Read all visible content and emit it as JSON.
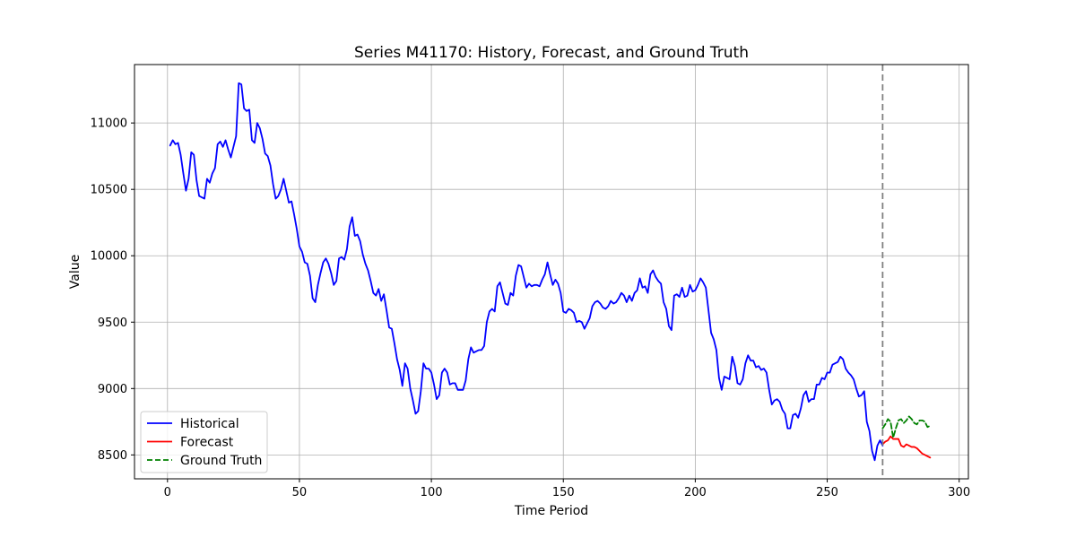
{
  "chart_data": {
    "type": "line",
    "title": "Series M41170: History, Forecast, and Ground Truth",
    "xlabel": "Time Period",
    "ylabel": "Value",
    "xlim": [
      -12.5,
      303.5
    ],
    "ylim": [
      8320,
      11440
    ],
    "xticks": [
      0,
      50,
      100,
      150,
      200,
      250,
      300
    ],
    "yticks": [
      8500,
      9000,
      9500,
      10000,
      10500,
      11000
    ],
    "grid": true,
    "legend_position": "lower-left",
    "forecast_start_marker": 271,
    "series": [
      {
        "name": "Historical",
        "color": "#0000ff",
        "style": "solid",
        "points": [
          [
            1,
            10830
          ],
          [
            2,
            10870
          ],
          [
            3,
            10840
          ],
          [
            4,
            10850
          ],
          [
            5,
            10760
          ],
          [
            6,
            10620
          ],
          [
            7,
            10490
          ],
          [
            8,
            10580
          ],
          [
            9,
            10780
          ],
          [
            10,
            10760
          ],
          [
            11,
            10570
          ],
          [
            12,
            10450
          ],
          [
            13,
            10440
          ],
          [
            14,
            10430
          ],
          [
            15,
            10580
          ],
          [
            16,
            10550
          ],
          [
            17,
            10620
          ],
          [
            18,
            10660
          ],
          [
            19,
            10840
          ],
          [
            20,
            10860
          ],
          [
            21,
            10820
          ],
          [
            22,
            10870
          ],
          [
            23,
            10800
          ],
          [
            24,
            10740
          ],
          [
            25,
            10820
          ],
          [
            26,
            10900
          ],
          [
            27,
            11300
          ],
          [
            28,
            11290
          ],
          [
            29,
            11110
          ],
          [
            30,
            11090
          ],
          [
            31,
            11100
          ],
          [
            32,
            10870
          ],
          [
            33,
            10850
          ],
          [
            34,
            11000
          ],
          [
            35,
            10960
          ],
          [
            36,
            10880
          ],
          [
            37,
            10770
          ],
          [
            38,
            10750
          ],
          [
            39,
            10680
          ],
          [
            40,
            10540
          ],
          [
            41,
            10430
          ],
          [
            42,
            10450
          ],
          [
            43,
            10500
          ],
          [
            44,
            10580
          ],
          [
            45,
            10490
          ],
          [
            46,
            10400
          ],
          [
            47,
            10410
          ],
          [
            48,
            10310
          ],
          [
            49,
            10200
          ],
          [
            50,
            10070
          ],
          [
            51,
            10030
          ],
          [
            52,
            9950
          ],
          [
            53,
            9940
          ],
          [
            54,
            9850
          ],
          [
            55,
            9680
          ],
          [
            56,
            9650
          ],
          [
            57,
            9780
          ],
          [
            58,
            9870
          ],
          [
            59,
            9950
          ],
          [
            60,
            9980
          ],
          [
            61,
            9940
          ],
          [
            62,
            9870
          ],
          [
            63,
            9780
          ],
          [
            64,
            9810
          ],
          [
            65,
            9980
          ],
          [
            66,
            9990
          ],
          [
            67,
            9970
          ],
          [
            68,
            10050
          ],
          [
            69,
            10220
          ],
          [
            70,
            10290
          ],
          [
            71,
            10150
          ],
          [
            72,
            10160
          ],
          [
            73,
            10110
          ],
          [
            74,
            10010
          ],
          [
            75,
            9940
          ],
          [
            76,
            9890
          ],
          [
            77,
            9810
          ],
          [
            78,
            9720
          ],
          [
            79,
            9700
          ],
          [
            80,
            9750
          ],
          [
            81,
            9660
          ],
          [
            82,
            9710
          ],
          [
            83,
            9590
          ],
          [
            84,
            9460
          ],
          [
            85,
            9450
          ],
          [
            86,
            9340
          ],
          [
            87,
            9220
          ],
          [
            88,
            9140
          ],
          [
            89,
            9020
          ],
          [
            90,
            9190
          ],
          [
            91,
            9150
          ],
          [
            92,
            9000
          ],
          [
            93,
            8910
          ],
          [
            94,
            8810
          ],
          [
            95,
            8830
          ],
          [
            96,
            8980
          ],
          [
            97,
            9190
          ],
          [
            98,
            9150
          ],
          [
            99,
            9150
          ],
          [
            100,
            9120
          ],
          [
            101,
            9030
          ],
          [
            102,
            8920
          ],
          [
            103,
            8950
          ],
          [
            104,
            9120
          ],
          [
            105,
            9150
          ],
          [
            106,
            9120
          ],
          [
            107,
            9030
          ],
          [
            108,
            9040
          ],
          [
            109,
            9040
          ],
          [
            110,
            8990
          ],
          [
            111,
            8990
          ],
          [
            112,
            8990
          ],
          [
            113,
            9060
          ],
          [
            114,
            9220
          ],
          [
            115,
            9310
          ],
          [
            116,
            9270
          ],
          [
            117,
            9280
          ],
          [
            118,
            9290
          ],
          [
            119,
            9290
          ],
          [
            120,
            9320
          ],
          [
            121,
            9500
          ],
          [
            122,
            9580
          ],
          [
            123,
            9600
          ],
          [
            124,
            9580
          ],
          [
            125,
            9770
          ],
          [
            126,
            9800
          ],
          [
            127,
            9720
          ],
          [
            128,
            9640
          ],
          [
            129,
            9630
          ],
          [
            130,
            9720
          ],
          [
            131,
            9700
          ],
          [
            132,
            9850
          ],
          [
            133,
            9930
          ],
          [
            134,
            9920
          ],
          [
            135,
            9840
          ],
          [
            136,
            9760
          ],
          [
            137,
            9790
          ],
          [
            138,
            9770
          ],
          [
            139,
            9780
          ],
          [
            140,
            9780
          ],
          [
            141,
            9770
          ],
          [
            142,
            9820
          ],
          [
            143,
            9860
          ],
          [
            144,
            9950
          ],
          [
            145,
            9860
          ],
          [
            146,
            9780
          ],
          [
            147,
            9820
          ],
          [
            148,
            9790
          ],
          [
            149,
            9720
          ],
          [
            150,
            9580
          ],
          [
            151,
            9570
          ],
          [
            152,
            9600
          ],
          [
            153,
            9590
          ],
          [
            154,
            9570
          ],
          [
            155,
            9500
          ],
          [
            156,
            9510
          ],
          [
            157,
            9500
          ],
          [
            158,
            9450
          ],
          [
            159,
            9490
          ],
          [
            160,
            9530
          ],
          [
            161,
            9620
          ],
          [
            162,
            9650
          ],
          [
            163,
            9660
          ],
          [
            164,
            9640
          ],
          [
            165,
            9610
          ],
          [
            166,
            9600
          ],
          [
            167,
            9620
          ],
          [
            168,
            9660
          ],
          [
            169,
            9640
          ],
          [
            170,
            9650
          ],
          [
            171,
            9680
          ],
          [
            172,
            9720
          ],
          [
            173,
            9700
          ],
          [
            174,
            9650
          ],
          [
            175,
            9700
          ],
          [
            176,
            9660
          ],
          [
            177,
            9720
          ],
          [
            178,
            9740
          ],
          [
            179,
            9830
          ],
          [
            180,
            9760
          ],
          [
            181,
            9770
          ],
          [
            182,
            9720
          ],
          [
            183,
            9860
          ],
          [
            184,
            9890
          ],
          [
            185,
            9840
          ],
          [
            186,
            9810
          ],
          [
            187,
            9790
          ],
          [
            188,
            9650
          ],
          [
            189,
            9600
          ],
          [
            190,
            9470
          ],
          [
            191,
            9440
          ],
          [
            192,
            9700
          ],
          [
            193,
            9710
          ],
          [
            194,
            9690
          ],
          [
            195,
            9760
          ],
          [
            196,
            9690
          ],
          [
            197,
            9700
          ],
          [
            198,
            9780
          ],
          [
            199,
            9730
          ],
          [
            200,
            9740
          ],
          [
            201,
            9780
          ],
          [
            202,
            9830
          ],
          [
            203,
            9800
          ],
          [
            204,
            9760
          ],
          [
            205,
            9590
          ],
          [
            206,
            9420
          ],
          [
            207,
            9370
          ],
          [
            208,
            9290
          ],
          [
            209,
            9080
          ],
          [
            210,
            8990
          ],
          [
            211,
            9090
          ],
          [
            212,
            9080
          ],
          [
            213,
            9070
          ],
          [
            214,
            9240
          ],
          [
            215,
            9170
          ],
          [
            216,
            9040
          ],
          [
            217,
            9030
          ],
          [
            218,
            9070
          ],
          [
            219,
            9190
          ],
          [
            220,
            9250
          ],
          [
            221,
            9210
          ],
          [
            222,
            9210
          ],
          [
            223,
            9160
          ],
          [
            224,
            9170
          ],
          [
            225,
            9140
          ],
          [
            226,
            9150
          ],
          [
            227,
            9120
          ],
          [
            228,
            8990
          ],
          [
            229,
            8880
          ],
          [
            230,
            8910
          ],
          [
            231,
            8920
          ],
          [
            232,
            8900
          ],
          [
            233,
            8840
          ],
          [
            234,
            8810
          ],
          [
            235,
            8700
          ],
          [
            236,
            8700
          ],
          [
            237,
            8800
          ],
          [
            238,
            8810
          ],
          [
            239,
            8780
          ],
          [
            240,
            8850
          ],
          [
            241,
            8950
          ],
          [
            242,
            8980
          ],
          [
            243,
            8900
          ],
          [
            244,
            8920
          ],
          [
            245,
            8920
          ],
          [
            246,
            9030
          ],
          [
            247,
            9030
          ],
          [
            248,
            9080
          ],
          [
            249,
            9070
          ],
          [
            250,
            9120
          ],
          [
            251,
            9120
          ],
          [
            252,
            9180
          ],
          [
            253,
            9190
          ],
          [
            254,
            9200
          ],
          [
            255,
            9240
          ],
          [
            256,
            9220
          ],
          [
            257,
            9150
          ],
          [
            258,
            9120
          ],
          [
            259,
            9100
          ],
          [
            260,
            9070
          ],
          [
            261,
            9000
          ],
          [
            262,
            8940
          ],
          [
            263,
            8950
          ],
          [
            264,
            8980
          ],
          [
            265,
            8750
          ],
          [
            266,
            8680
          ],
          [
            267,
            8530
          ],
          [
            268,
            8460
          ],
          [
            269,
            8570
          ],
          [
            270,
            8610
          ],
          [
            271,
            8570
          ]
        ]
      },
      {
        "name": "Forecast",
        "color": "#ff0000",
        "style": "solid",
        "points": [
          [
            271,
            8580
          ],
          [
            272,
            8600
          ],
          [
            273,
            8610
          ],
          [
            274,
            8640
          ],
          [
            275,
            8620
          ],
          [
            276,
            8620
          ],
          [
            277,
            8620
          ],
          [
            278,
            8570
          ],
          [
            279,
            8560
          ],
          [
            280,
            8580
          ],
          [
            281,
            8570
          ],
          [
            282,
            8560
          ],
          [
            283,
            8560
          ],
          [
            284,
            8550
          ],
          [
            285,
            8530
          ],
          [
            286,
            8510
          ],
          [
            287,
            8500
          ],
          [
            288,
            8490
          ],
          [
            289,
            8480
          ]
        ]
      },
      {
        "name": "Ground Truth",
        "color": "#008000",
        "style": "dashed",
        "points": [
          [
            271,
            8700
          ],
          [
            272,
            8730
          ],
          [
            273,
            8770
          ],
          [
            274,
            8750
          ],
          [
            275,
            8630
          ],
          [
            276,
            8700
          ],
          [
            277,
            8760
          ],
          [
            278,
            8770
          ],
          [
            279,
            8740
          ],
          [
            280,
            8760
          ],
          [
            281,
            8790
          ],
          [
            282,
            8770
          ],
          [
            283,
            8740
          ],
          [
            284,
            8730
          ],
          [
            285,
            8760
          ],
          [
            286,
            8760
          ],
          [
            287,
            8750
          ],
          [
            288,
            8710
          ],
          [
            289,
            8720
          ]
        ]
      }
    ]
  }
}
